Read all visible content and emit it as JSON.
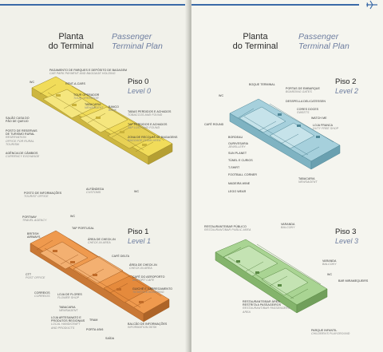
{
  "header": {
    "title_pt": [
      "Planta",
      "do Terminal"
    ],
    "title_en": [
      "Passenger",
      "Terminal Plan"
    ]
  },
  "colors": {
    "level0": "#f1dc5a",
    "level1": "#ef9a4e",
    "level2": "#a6d0dc",
    "level3": "#a9d493",
    "accent": "#3a6aa8"
  },
  "levels": {
    "l0": {
      "pt": "Piso 0",
      "en": "Level 0"
    },
    "l1": {
      "pt": "Piso 1",
      "en": "Level 1"
    },
    "l2": {
      "pt": "Piso 2",
      "en": "Level 2"
    },
    "l3": {
      "pt": "Piso 3",
      "en": "Level 3"
    }
  },
  "labels0": {
    "parking": {
      "pt": "PAGAMENTO DE PARQUES E DEPÓSITO DE BAGAGEM",
      "en": "CAR PARK PAYMENT AND BAGGAGE HOLDING"
    },
    "wc": {
      "pt": "WC"
    },
    "rent": {
      "pt": "RENT-A-CARS"
    },
    "tour": {
      "pt": "TOUR OPERADOR",
      "en": "TOUR OPERATOR"
    },
    "tabacaria": {
      "pt": "TABACARIA",
      "en": "NEWSAGENT"
    },
    "banco": {
      "pt": "BANCO",
      "en": "BANK"
    },
    "tabacos": {
      "pt": "TABAS PERDIDOS E ACHADOS",
      "en": "TOBACCOS AND FOUND"
    },
    "tap": {
      "pt": "TAP PERDIDOS E ACHADOS",
      "en": "TAP LOST AND FOUND"
    },
    "zona": {
      "pt": "ZONA DE RECOLHA DE BAGAGENS",
      "en": "BAGGAGE CLAIM AREA"
    },
    "casa": {
      "pt": "SALÃO CASA DO PÃO DE QUEIJO",
      "en": ""
    },
    "posto": {
      "pt": "POSTO DE RESERVAS DE TURISMO RURAL",
      "en": "RESERVATION OFFICE FOR RURAL TOURISM"
    },
    "agencia": {
      "pt": "AGÊNCIA DE CÂMBIOS",
      "en": "CURRENCY EXCHANGE"
    },
    "info": {
      "pt": "POSTO DE INFORMAÇÕES",
      "en": "TOURIST OFFICE"
    },
    "alfandega": {
      "pt": "ALFÂNDEGA",
      "en": "CUSTOMS"
    },
    "wc2": {
      "pt": "WC"
    }
  },
  "labels1": {
    "portway": {
      "pt": "PORTWAY",
      "en": "TRAVEL AGENCY"
    },
    "wc": {
      "pt": "WC"
    },
    "tap": {
      "pt": "TAP PORTUGAL"
    },
    "british": {
      "pt": "BRITISH AIRWAYS"
    },
    "area_checkin": {
      "pt": "ÁREA DE CHECK-IN",
      "en": "CHECK-IN AREA"
    },
    "cafe": {
      "pt": "CAFÉ DELTA"
    },
    "area_checkin2": {
      "pt": "ÁREA DE CHECK-IN",
      "en": "CHECK-IN AREA"
    },
    "ctt": {
      "pt": "CTT",
      "en": "POST OFFICE"
    },
    "cafe_aero": {
      "pt": "CAFÉ DO AEROPORTO",
      "en": "AIRPORT CAFE"
    },
    "correios": {
      "pt": "CORREIOS",
      "en": "CORREIOS"
    },
    "loja_flores": {
      "pt": "LOJA DE FLORES",
      "en": "FLOWER SHOP"
    },
    "guiche": {
      "pt": "GUICHÉ E CARREGAMENTO",
      "en": "TICKETS & BOARDING"
    },
    "tabacaria": {
      "pt": "TABACARIA",
      "en": "NEWSAGENT"
    },
    "loja_artesanato": {
      "pt": "LOJA ARTESANATO E PRODUTOS REGIONAIS",
      "en": "LOCAL HANDICRAFT AND PRODUCTS"
    },
    "tram": {
      "pt": "TRAM"
    },
    "porta": {
      "pt": "PORTA 4/5/6"
    },
    "saida": {
      "pt": "SAÍDA"
    },
    "balcao": {
      "pt": "BALCÃO DE INFORMAÇÕES",
      "en": "INFORMATION DESK"
    }
  },
  "labels2": {
    "boque": {
      "pt": "BOQUE TERMINAL"
    },
    "portas": {
      "pt": "PORTAS DE EMBARQUE",
      "en": "BOARDING GATES"
    },
    "wc": {
      "pt": "WC"
    },
    "deli": {
      "pt": "DESSPELLA DELICATESSEN"
    },
    "cores": {
      "pt": "CORES DOCES",
      "en": "SWEETS"
    },
    "watch": {
      "pt": "WATCH ME"
    },
    "cafe": {
      "pt": "CAFÉ ROUND"
    },
    "loja_franca": {
      "pt": "LOJA FRANCA",
      "en": "DUTY FREE SHOP"
    },
    "bordeau": {
      "pt": "BORDEAU"
    },
    "ourivesaria": {
      "pt": "OURIVESARIA",
      "en": "JEWELLERY"
    },
    "sunplanet": {
      "pt": "SUN PLANET"
    },
    "tunel": {
      "pt": "TÚNEL E CURIOS"
    },
    "tshirt": {
      "pt": "T-SHIRT"
    },
    "football": {
      "pt": "FOOTBALL CORNER"
    },
    "tabacaria": {
      "pt": "TABACARIA",
      "en": "NEWSAGENT"
    },
    "madeira": {
      "pt": "MADEIRA WINE"
    },
    "lego": {
      "pt": "LEGO WEAR"
    }
  },
  "labels3": {
    "restaurante": {
      "pt": "RESTAURANTE/BAR PÚBLICO",
      "en": "RESTAURANT/BAR PUBLIC AREA"
    },
    "varanda": {
      "pt": "VARANDA",
      "en": "BALCONY"
    },
    "varanda2": {
      "pt": "VARANDA",
      "en": "BALCONY"
    },
    "wc": {
      "pt": "WC"
    },
    "bar": {
      "pt": "BAR MIRAMEQUEIRS"
    },
    "rest_area": {
      "pt": "RESTAURANTE/BAR ÁREA RESTRITA A PASSAGEIROS",
      "en": "RESTAURANT/BAR PASSENGERS AREA"
    },
    "parque": {
      "pt": "PARQUE INFANTIL",
      "en": "CHILDREN'S PLAYGROUND"
    }
  }
}
